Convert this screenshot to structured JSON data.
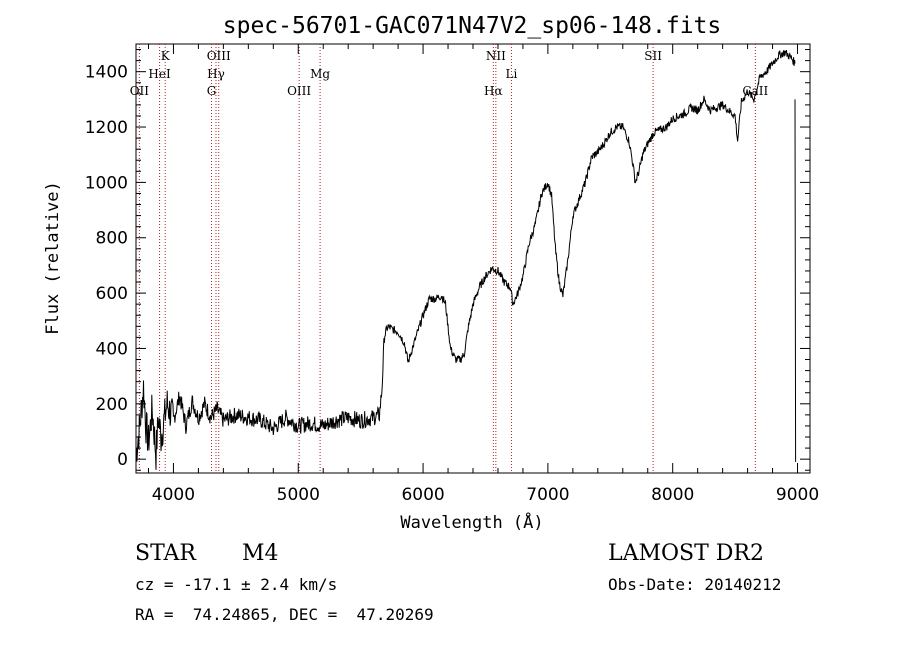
{
  "chart_data": {
    "type": "line",
    "title": "spec-56701-GAC071N47V2_sp06-148.fits",
    "xlabel": "Wavelength (Å)",
    "ylabel": "Flux (relative)",
    "xlim": [
      3700,
      9100
    ],
    "ylim": [
      -50,
      1500
    ],
    "xticks": [
      4000,
      5000,
      6000,
      7000,
      8000,
      9000
    ],
    "yticks": [
      0,
      200,
      400,
      600,
      800,
      1000,
      1200,
      1400
    ],
    "line_color": "#000000",
    "marker_color": "#b22222",
    "lines": [
      {
        "label": "OII",
        "x": 3727,
        "row": 3
      },
      {
        "label": "K",
        "x": 3934,
        "row": 1
      },
      {
        "label": "HeI",
        "x": 3889,
        "row": 2
      },
      {
        "label": "OIII",
        "x": 4363,
        "row": 1
      },
      {
        "label": "Hγ",
        "x": 4341,
        "row": 2
      },
      {
        "label": "G",
        "x": 4305,
        "row": 3
      },
      {
        "label": "OIII",
        "x": 5007,
        "row": 3
      },
      {
        "label": "Mg",
        "x": 5175,
        "row": 2
      },
      {
        "label": "NII",
        "x": 6583,
        "row": 1
      },
      {
        "label": "Hα",
        "x": 6563,
        "row": 3
      },
      {
        "label": "Li",
        "x": 6708,
        "row": 2
      },
      {
        "label": "SII",
        "x": 7843,
        "row": 1
      },
      {
        "label": "CaII",
        "x": 8662,
        "row": 3
      }
    ],
    "spectrum": [
      [
        3700,
        20
      ],
      [
        3730,
        120
      ],
      [
        3760,
        260
      ],
      [
        3780,
        120
      ],
      [
        3800,
        60
      ],
      [
        3830,
        180
      ],
      [
        3860,
        20
      ],
      [
        3880,
        150
      ],
      [
        3900,
        80
      ],
      [
        3950,
        200
      ],
      [
        4000,
        140
      ],
      [
        4050,
        230
      ],
      [
        4100,
        120
      ],
      [
        4150,
        210
      ],
      [
        4200,
        150
      ],
      [
        4250,
        200
      ],
      [
        4300,
        150
      ],
      [
        4350,
        180
      ],
      [
        4400,
        140
      ],
      [
        4500,
        160
      ],
      [
        4600,
        150
      ],
      [
        4700,
        140
      ],
      [
        4800,
        110
      ],
      [
        4900,
        150
      ],
      [
        5000,
        120
      ],
      [
        5100,
        130
      ],
      [
        5200,
        120
      ],
      [
        5300,
        140
      ],
      [
        5400,
        150
      ],
      [
        5500,
        140
      ],
      [
        5600,
        150
      ],
      [
        5650,
        160
      ],
      [
        5670,
        250
      ],
      [
        5690,
        450
      ],
      [
        5720,
        480
      ],
      [
        5750,
        470
      ],
      [
        5800,
        460
      ],
      [
        5850,
        420
      ],
      [
        5880,
        350
      ],
      [
        5900,
        380
      ],
      [
        5950,
        450
      ],
      [
        6000,
        520
      ],
      [
        6050,
        580
      ],
      [
        6100,
        580
      ],
      [
        6150,
        590
      ],
      [
        6180,
        560
      ],
      [
        6200,
        480
      ],
      [
        6220,
        400
      ],
      [
        6260,
        360
      ],
      [
        6300,
        360
      ],
      [
        6330,
        380
      ],
      [
        6360,
        470
      ],
      [
        6400,
        560
      ],
      [
        6450,
        620
      ],
      [
        6500,
        660
      ],
      [
        6550,
        690
      ],
      [
        6600,
        680
      ],
      [
        6650,
        640
      ],
      [
        6700,
        620
      ],
      [
        6720,
        560
      ],
      [
        6760,
        600
      ],
      [
        6800,
        660
      ],
      [
        6850,
        780
      ],
      [
        6900,
        850
      ],
      [
        6950,
        960
      ],
      [
        7000,
        1000
      ],
      [
        7030,
        950
      ],
      [
        7060,
        760
      ],
      [
        7090,
        640
      ],
      [
        7120,
        590
      ],
      [
        7160,
        720
      ],
      [
        7200,
        880
      ],
      [
        7250,
        940
      ],
      [
        7300,
        1000
      ],
      [
        7350,
        1090
      ],
      [
        7400,
        1110
      ],
      [
        7450,
        1140
      ],
      [
        7500,
        1180
      ],
      [
        7550,
        1200
      ],
      [
        7600,
        1200
      ],
      [
        7650,
        1150
      ],
      [
        7680,
        1070
      ],
      [
        7700,
        1000
      ],
      [
        7730,
        1040
      ],
      [
        7760,
        1100
      ],
      [
        7800,
        1140
      ],
      [
        7850,
        1180
      ],
      [
        7900,
        1190
      ],
      [
        7950,
        1200
      ],
      [
        8000,
        1230
      ],
      [
        8050,
        1240
      ],
      [
        8100,
        1250
      ],
      [
        8150,
        1270
      ],
      [
        8200,
        1260
      ],
      [
        8250,
        1300
      ],
      [
        8300,
        1260
      ],
      [
        8350,
        1270
      ],
      [
        8400,
        1280
      ],
      [
        8450,
        1260
      ],
      [
        8500,
        1240
      ],
      [
        8520,
        1150
      ],
      [
        8550,
        1290
      ],
      [
        8600,
        1330
      ],
      [
        8650,
        1300
      ],
      [
        8700,
        1380
      ],
      [
        8750,
        1400
      ],
      [
        8800,
        1430
      ],
      [
        8850,
        1460
      ],
      [
        8900,
        1470
      ],
      [
        8950,
        1450
      ],
      [
        8980,
        1430
      ]
    ]
  },
  "info": {
    "object_type": "STAR",
    "subclass": "M4",
    "redshift": "cz = -17.1 ± 2.4 km/s",
    "coords": "RA =  74.24865, DEC =  47.20269",
    "survey": "LAMOST DR2",
    "obs_date": "Obs-Date: 20140212"
  }
}
